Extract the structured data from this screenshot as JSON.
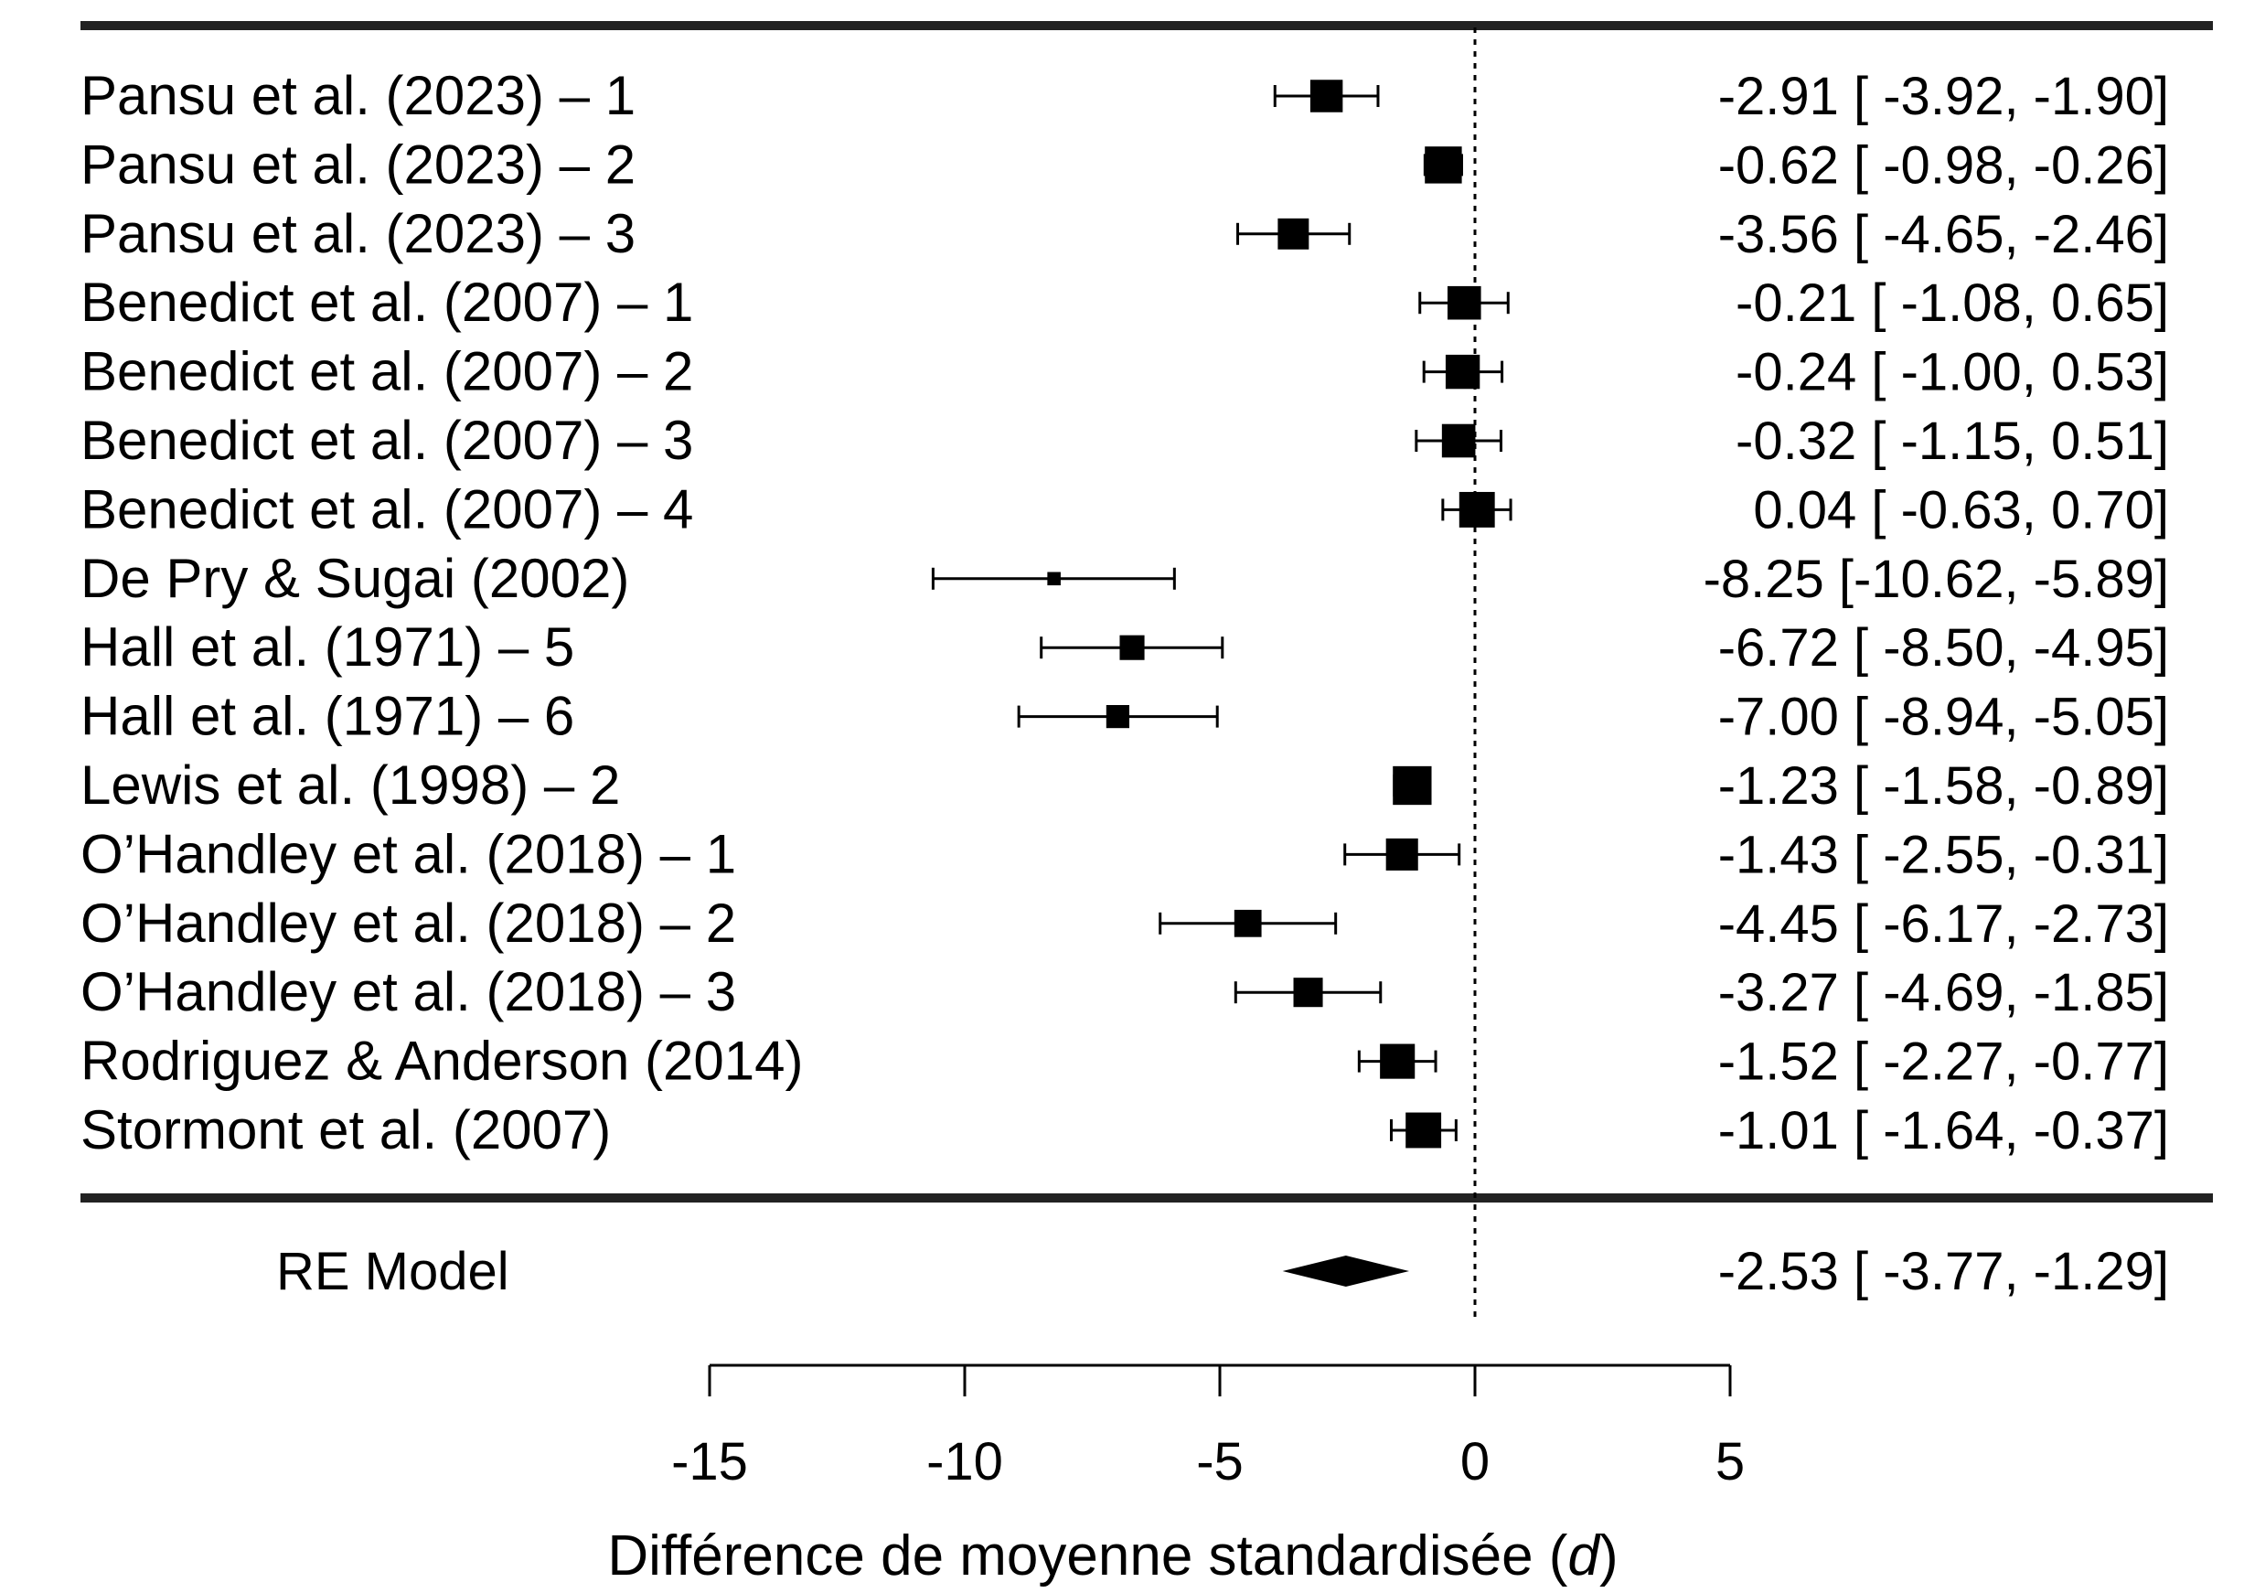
{
  "chart_data": {
    "type": "forest",
    "xlabel_parts": [
      "Différence de moyenne standardisée (",
      "d",
      ")"
    ],
    "xlim": [
      -15,
      5
    ],
    "xticks": [
      -15,
      -10,
      -5,
      0,
      5
    ],
    "reference_line": 0,
    "studies": [
      {
        "label": "Pansu et al. (2023) – 1",
        "estimate": -2.91,
        "lower": -3.92,
        "upper": -1.9,
        "ci_text": "-2.91 [ -3.92, -1.90]",
        "weight": 0.67
      },
      {
        "label": "Pansu et al. (2023) – 2",
        "estimate": -0.62,
        "lower": -0.98,
        "upper": -0.26,
        "ci_text": "-0.62 [ -0.98, -0.26]",
        "weight": 0.8
      },
      {
        "label": "Pansu et al. (2023) – 3",
        "estimate": -3.56,
        "lower": -4.65,
        "upper": -2.46,
        "ci_text": "-3.56 [ -4.65, -2.46]",
        "weight": 0.63
      },
      {
        "label": "Benedict et al. (2007) – 1",
        "estimate": -0.21,
        "lower": -1.08,
        "upper": 0.65,
        "ci_text": "-0.21 [ -1.08, 0.65]",
        "weight": 0.7
      },
      {
        "label": "Benedict et al. (2007) – 2",
        "estimate": -0.24,
        "lower": -1.0,
        "upper": 0.53,
        "ci_text": "-0.24 [ -1.00, 0.53]",
        "weight": 0.72
      },
      {
        "label": "Benedict et al. (2007) – 3",
        "estimate": -0.32,
        "lower": -1.15,
        "upper": 0.51,
        "ci_text": "-0.32 [ -1.15, 0.51]",
        "weight": 0.7
      },
      {
        "label": "Benedict et al. (2007) – 4",
        "estimate": 0.04,
        "lower": -0.63,
        "upper": 0.7,
        "ci_text": "0.04 [ -0.63, 0.70]",
        "weight": 0.76
      },
      {
        "label": "De Pry & Sugai (2002)",
        "estimate": -8.25,
        "lower": -10.62,
        "upper": -5.89,
        "ci_text": "-8.25 [-10.62, -5.89]",
        "weight": 0.12
      },
      {
        "label": "Hall et al. (1971) – 5",
        "estimate": -6.72,
        "lower": -8.5,
        "upper": -4.95,
        "ci_text": "-6.72 [ -8.50, -4.95]",
        "weight": 0.45
      },
      {
        "label": "Hall et al. (1971) – 6",
        "estimate": -7.0,
        "lower": -8.94,
        "upper": -5.05,
        "ci_text": "-7.00 [ -8.94, -5.05]",
        "weight": 0.4
      },
      {
        "label": "Lewis et al. (1998) – 2",
        "estimate": -1.23,
        "lower": -1.58,
        "upper": -0.89,
        "ci_text": "-1.23 [ -1.58, -0.89]",
        "weight": 0.85
      },
      {
        "label": "O’Handley et al. (2018) – 1",
        "estimate": -1.43,
        "lower": -2.55,
        "upper": -0.31,
        "ci_text": "-1.43 [ -2.55, -0.31]",
        "weight": 0.66
      },
      {
        "label": "O’Handley et al. (2018) – 2",
        "estimate": -4.45,
        "lower": -6.17,
        "upper": -2.73,
        "ci_text": "-4.45 [ -6.17, -2.73]",
        "weight": 0.52
      },
      {
        "label": "O’Handley et al. (2018) – 3",
        "estimate": -3.27,
        "lower": -4.69,
        "upper": -1.85,
        "ci_text": "-3.27 [ -4.69, -1.85]",
        "weight": 0.58
      },
      {
        "label": "Rodriguez & Anderson (2014)",
        "estimate": -1.52,
        "lower": -2.27,
        "upper": -0.77,
        "ci_text": "-1.52 [ -2.27, -0.77]",
        "weight": 0.74
      },
      {
        "label": "Stormont et al. (2007)",
        "estimate": -1.01,
        "lower": -1.64,
        "upper": -0.37,
        "ci_text": "-1.01 [ -1.64, -0.37]",
        "weight": 0.76
      }
    ],
    "summary": {
      "label": "RE Model",
      "estimate": -2.53,
      "lower": -3.77,
      "upper": -1.29,
      "ci_text": "-2.53 [ -3.77, -1.29]"
    }
  }
}
